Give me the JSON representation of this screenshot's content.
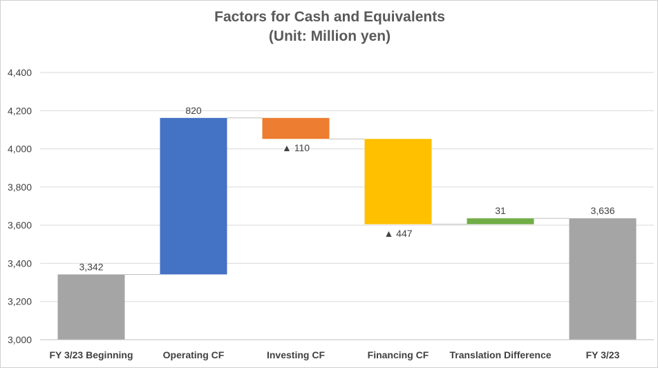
{
  "chart_data": {
    "type": "waterfall",
    "title": "Factors for Cash and Equivalents",
    "subtitle": "(Unit: Million yen)",
    "ylim": [
      3000,
      4400
    ],
    "yticks": [
      3000,
      3200,
      3400,
      3600,
      3800,
      4000,
      4200,
      4400
    ],
    "ytick_labels": [
      "3,000",
      "3,200",
      "3,400",
      "3,600",
      "3,800",
      "4,000",
      "4,200",
      "4,400"
    ],
    "grid": true,
    "categories": [
      "FY 3/23 Beginning",
      "Operating CF",
      "Investing CF",
      "Financing CF",
      "Translation Difference",
      "FY 3/23"
    ],
    "bars": [
      {
        "start": 0,
        "end": 3342,
        "total": true,
        "color": "#a5a5a5",
        "label": "3,342"
      },
      {
        "start": 3342,
        "end": 4162,
        "total": false,
        "color": "#4472c4",
        "label": "820"
      },
      {
        "start": 4162,
        "end": 4052,
        "total": false,
        "color": "#ed7d31",
        "label": "▲ 110"
      },
      {
        "start": 4052,
        "end": 3605,
        "total": false,
        "color": "#ffc000",
        "label": "▲ 447"
      },
      {
        "start": 3605,
        "end": 3636,
        "total": false,
        "color": "#70ad47",
        "label": "31"
      },
      {
        "start": 0,
        "end": 3636,
        "total": true,
        "color": "#a5a5a5",
        "label": "3,636"
      }
    ]
  }
}
